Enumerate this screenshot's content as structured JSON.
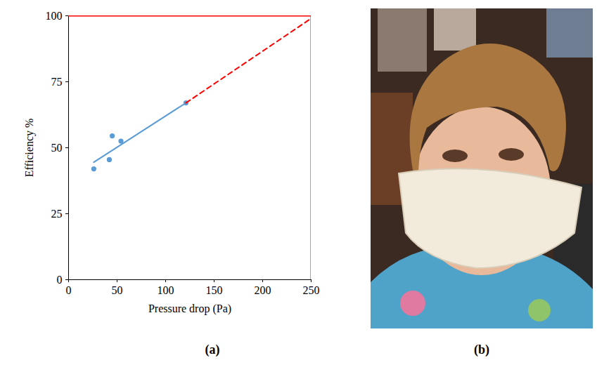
{
  "chart_data": {
    "type": "scatter",
    "caption": "(a)",
    "x_label": "Pressure drop (Pa)",
    "y_label": "Efficiency %",
    "xlim": [
      0,
      250
    ],
    "xticks": [
      0,
      50,
      100,
      150,
      200,
      250
    ],
    "ylim": [
      0,
      100
    ],
    "yticks": [
      0,
      25,
      50,
      75,
      100
    ],
    "grid": false,
    "series": [
      {
        "type": "scatter",
        "color": "#5b9bd5",
        "marker": "circle",
        "x": [
          26,
          42,
          45,
          54,
          121
        ],
        "values": [
          42,
          45.5,
          54.5,
          52.5,
          67
        ]
      },
      {
        "type": "line",
        "color": "#5b9bd5",
        "line_style": "solid",
        "x": [
          26,
          121
        ],
        "values": [
          44.5,
          67
        ]
      },
      {
        "type": "line",
        "color": "#ff0000",
        "line_style": "dashed",
        "x": [
          121,
          250
        ],
        "values": [
          67,
          99
        ]
      },
      {
        "type": "line",
        "color": "#ff0000",
        "line_style": "solid",
        "x": [
          0,
          250
        ],
        "values": [
          100,
          100
        ]
      },
      {
        "type": "line",
        "color": "#ff0000",
        "line_style": "solid",
        "x": [
          250,
          250
        ],
        "values": [
          0,
          100
        ]
      }
    ]
  },
  "photo": {
    "caption": "(b)"
  }
}
